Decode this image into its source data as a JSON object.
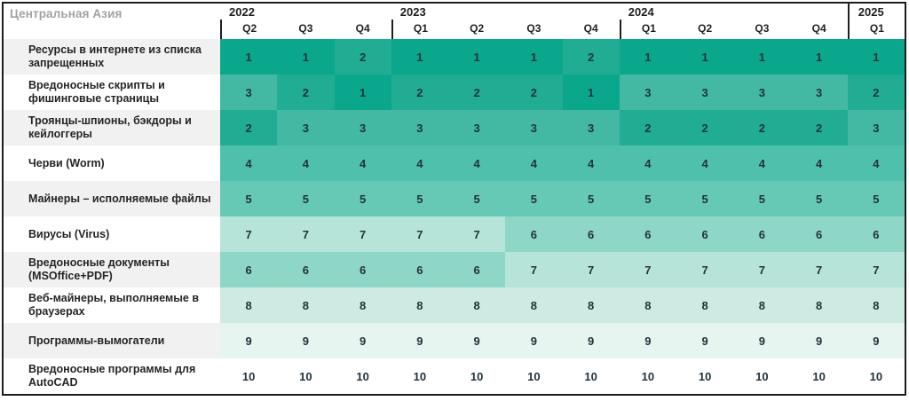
{
  "title": "Центральная Азия",
  "header": {
    "year_groups": [
      {
        "year": "2022",
        "quarters": [
          "Q2",
          "Q3",
          "Q4"
        ]
      },
      {
        "year": "2023",
        "quarters": [
          "Q1",
          "Q2",
          "Q3",
          "Q4"
        ]
      },
      {
        "year": "2024",
        "quarters": [
          "Q1",
          "Q2",
          "Q3",
          "Q4"
        ]
      },
      {
        "year": "2025",
        "quarters": [
          "Q1"
        ]
      }
    ]
  },
  "chart_data": {
    "type": "heatmap",
    "title": "Центральная Азия",
    "columns": [
      "2022 Q2",
      "2022 Q3",
      "2022 Q4",
      "2023 Q1",
      "2023 Q2",
      "2023 Q3",
      "2023 Q4",
      "2024 Q1",
      "2024 Q2",
      "2024 Q3",
      "2024 Q4",
      "2025 Q1"
    ],
    "value_meaning": "rank 1 (highest) to 10 (lowest)",
    "rank_colors": {
      "1": "#0aa78c",
      "2": "#20ad94",
      "3": "#43b9a4",
      "4": "#4fc0ab",
      "5": "#66c9b6",
      "6": "#8ed6c6",
      "7": "#b7e4d9",
      "8": "#cdebe3",
      "9": "#e6f5f0",
      "10": "#ffffff"
    },
    "rows": [
      {
        "label": "Ресурсы в интернете из списка запрещенных",
        "values": [
          1,
          1,
          2,
          1,
          1,
          1,
          2,
          1,
          1,
          1,
          1,
          1
        ]
      },
      {
        "label": "Вредоносные скрипты и фишинговые страницы",
        "values": [
          3,
          2,
          1,
          2,
          2,
          2,
          1,
          3,
          3,
          3,
          3,
          2
        ]
      },
      {
        "label": "Троянцы-шпионы, бэкдоры и кейлоггеры",
        "values": [
          2,
          3,
          3,
          3,
          3,
          3,
          3,
          2,
          2,
          2,
          2,
          3
        ]
      },
      {
        "label": "Черви (Worm)",
        "values": [
          4,
          4,
          4,
          4,
          4,
          4,
          4,
          4,
          4,
          4,
          4,
          4
        ]
      },
      {
        "label": "Майнеры – исполняемые файлы",
        "values": [
          5,
          5,
          5,
          5,
          5,
          5,
          5,
          5,
          5,
          5,
          5,
          5
        ]
      },
      {
        "label": "Вирусы (Virus)",
        "values": [
          7,
          7,
          7,
          7,
          7,
          6,
          6,
          6,
          6,
          6,
          6,
          6
        ]
      },
      {
        "label": "Вредоносные документы (MSOffice+PDF)",
        "values": [
          6,
          6,
          6,
          6,
          6,
          7,
          7,
          7,
          7,
          7,
          7,
          7
        ]
      },
      {
        "label": "Веб-майнеры, выполняемые в браузерах",
        "values": [
          8,
          8,
          8,
          8,
          8,
          8,
          8,
          8,
          8,
          8,
          8,
          8
        ]
      },
      {
        "label": "Программы-вымогатели",
        "values": [
          9,
          9,
          9,
          9,
          9,
          9,
          9,
          9,
          9,
          9,
          9,
          9
        ]
      },
      {
        "label": "Вредоносные программы для AutoCAD",
        "values": [
          10,
          10,
          10,
          10,
          10,
          10,
          10,
          10,
          10,
          10,
          10,
          10
        ]
      }
    ]
  }
}
